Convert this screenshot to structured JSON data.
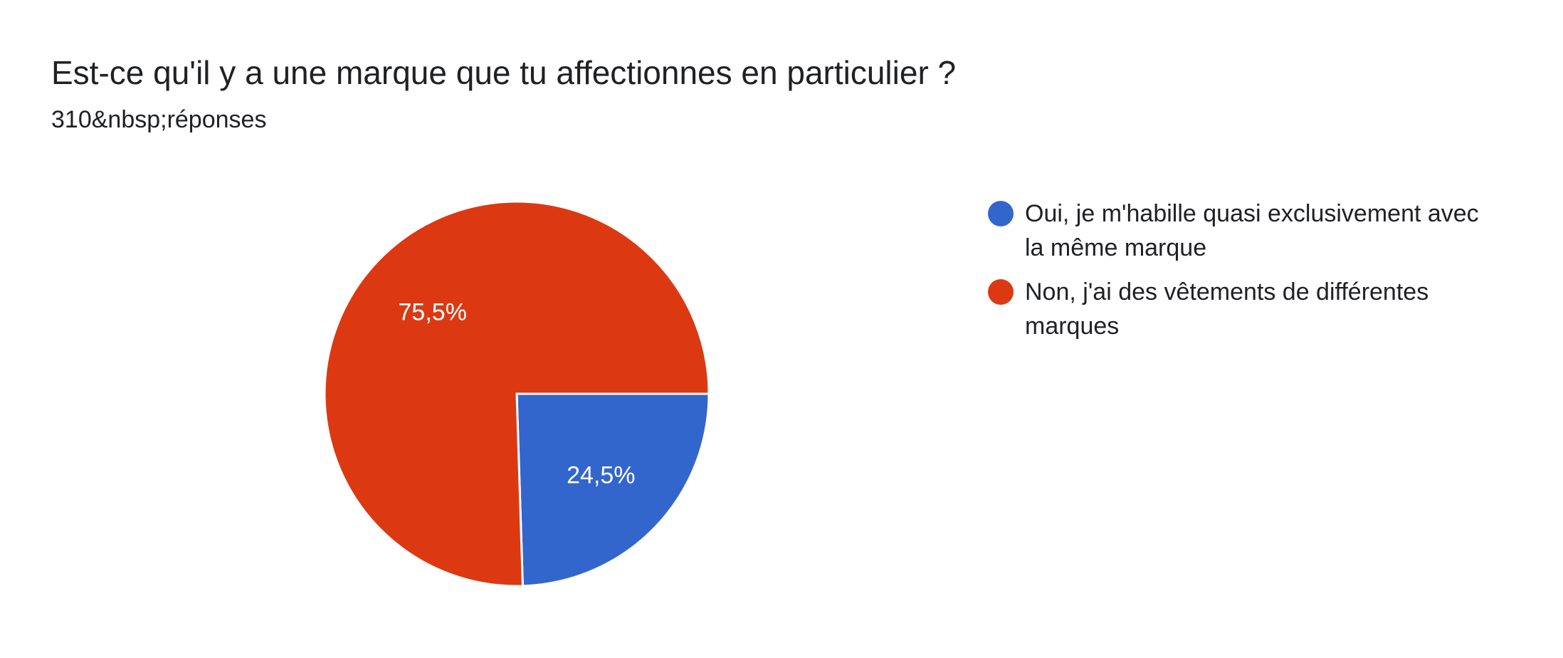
{
  "question": {
    "title": "Est-ce qu'il y a une marque que tu affectionnes en particulier ?",
    "responses": "310&nbsp;réponses"
  },
  "chart_data": {
    "type": "pie",
    "categories": [
      "Oui, je m'habille quasi exclusivement avec la même marque",
      "Non, j'ai des vêtements de différentes marques"
    ],
    "values": [
      24.5,
      75.5
    ],
    "labels": [
      "24,5%",
      "75,5%"
    ],
    "colors": [
      "#3366cc",
      "#dc3912"
    ],
    "legend_position": "right"
  }
}
